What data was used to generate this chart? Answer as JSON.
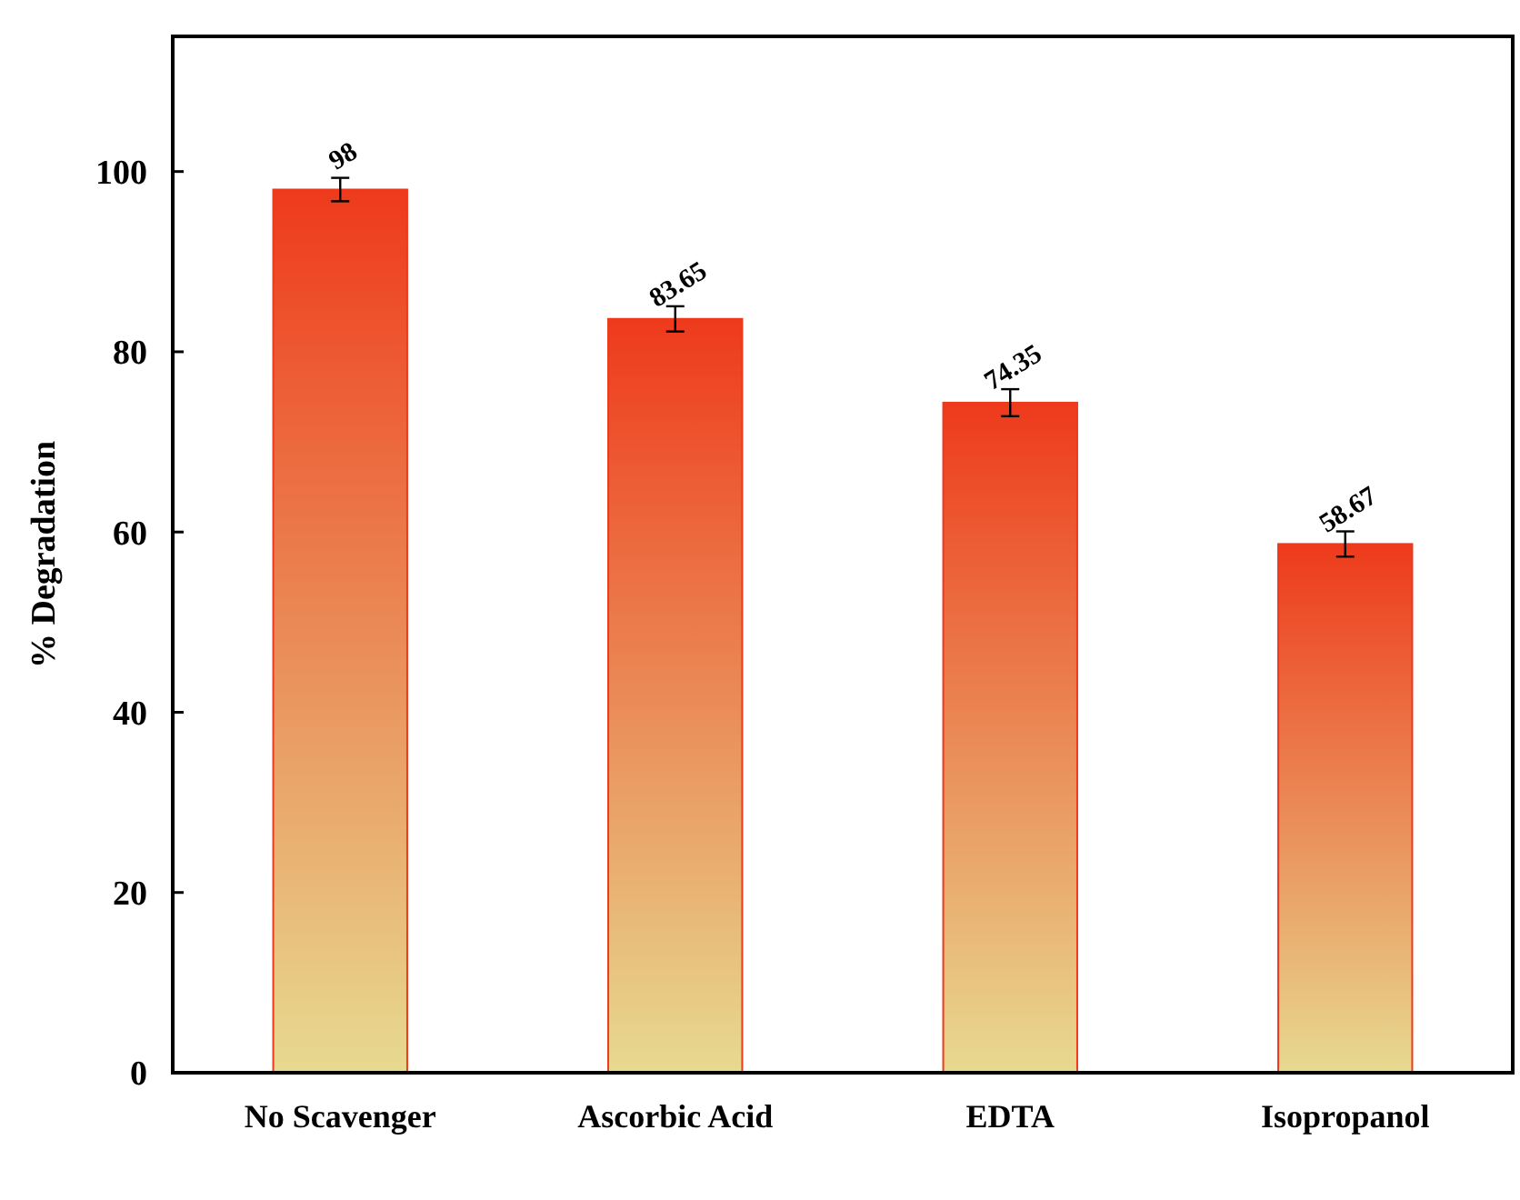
{
  "chart_data": {
    "type": "bar",
    "ylabel": "% Degradation",
    "categories": [
      "No Scavenger",
      "Ascorbic Acid",
      "EDTA",
      "Isopropanol"
    ],
    "values": [
      98,
      83.65,
      74.35,
      58.67
    ],
    "errors": [
      1.3,
      1.4,
      1.5,
      1.4
    ],
    "color": "#ee3a1c",
    "ylim": [
      0,
      115
    ],
    "yticks": [
      0,
      20,
      40,
      60,
      80,
      100
    ],
    "grid": false,
    "data_labels": true
  }
}
